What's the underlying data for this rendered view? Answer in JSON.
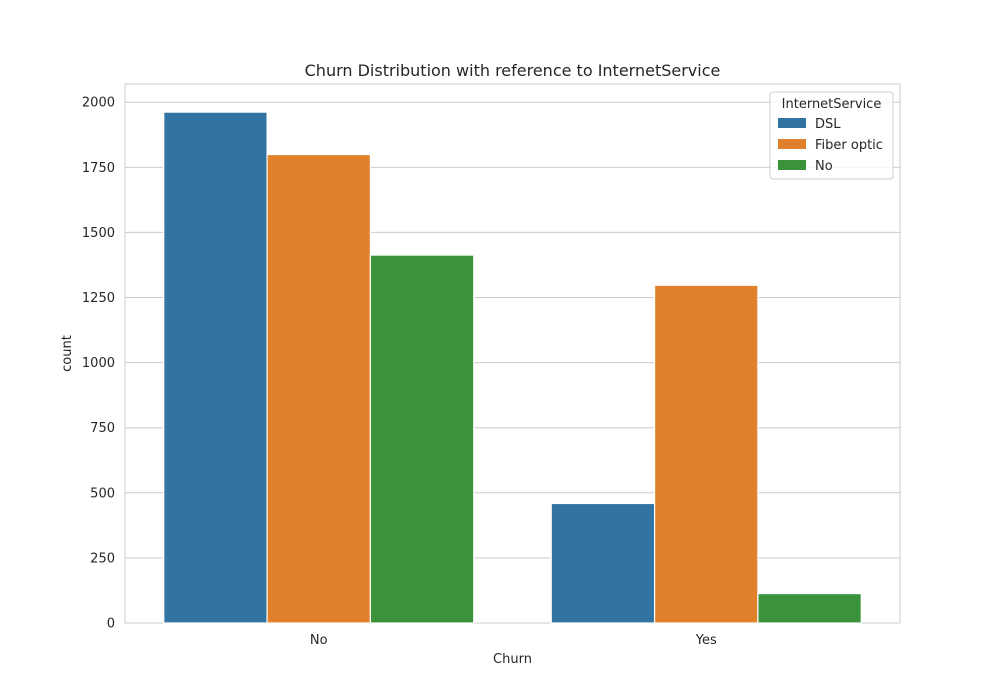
{
  "chart_data": {
    "type": "bar",
    "title": "Churn Distribution with reference to InternetService",
    "xlabel": "Churn",
    "ylabel": "count",
    "categories": [
      "No",
      "Yes"
    ],
    "ylim": [
      0,
      2070
    ],
    "yticks": [
      0,
      250,
      500,
      750,
      1000,
      1250,
      1500,
      1750,
      2000
    ],
    "grid": true,
    "legend": {
      "title": "InternetService",
      "placement": "top-right"
    },
    "series": [
      {
        "name": "DSL",
        "color": "#3274a1",
        "values": [
          1962,
          459
        ]
      },
      {
        "name": "Fiber optic",
        "color": "#e1812c",
        "values": [
          1799,
          1297
        ]
      },
      {
        "name": "No",
        "color": "#3a923a",
        "values": [
          1413,
          113
        ]
      }
    ]
  }
}
